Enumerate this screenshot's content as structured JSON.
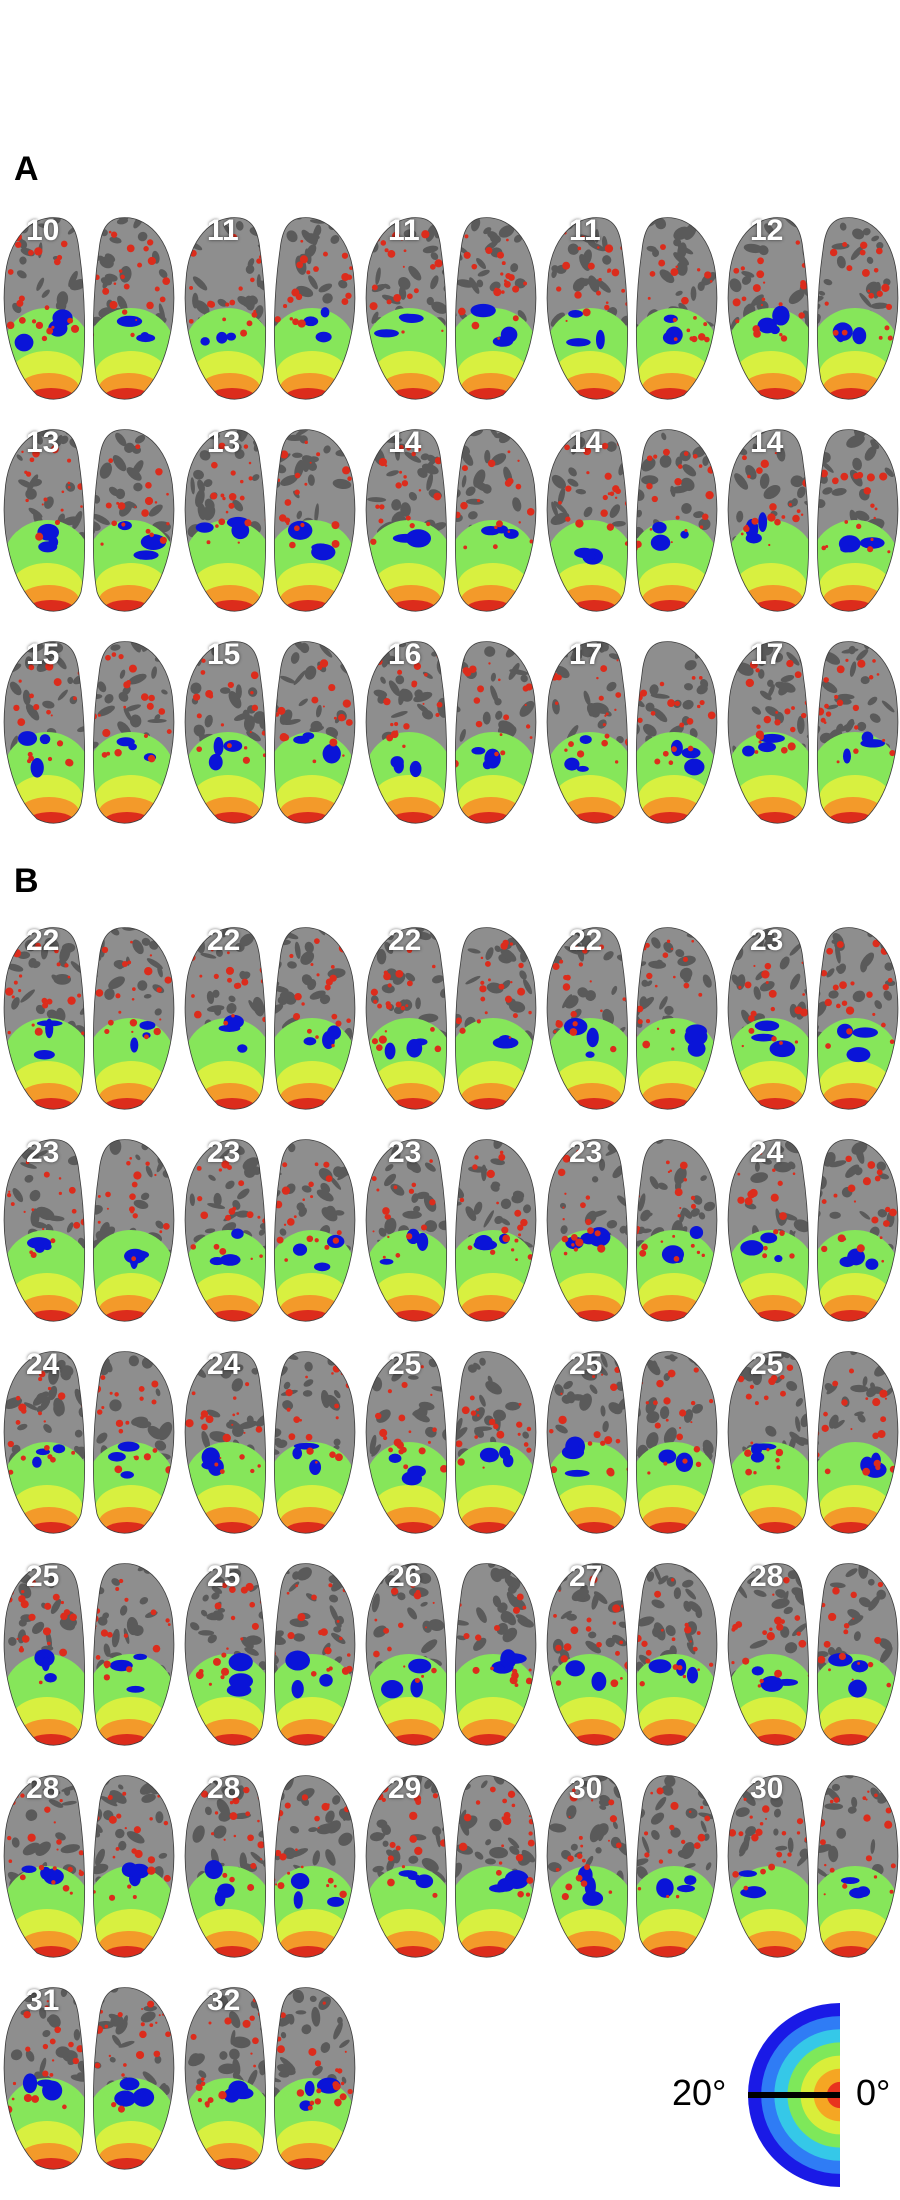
{
  "panels": [
    {
      "label": "A",
      "subjects": [
        "10",
        "11",
        "11",
        "11",
        "12",
        "13",
        "13",
        "14",
        "14",
        "14",
        "15",
        "15",
        "16",
        "17",
        "17"
      ]
    },
    {
      "label": "B",
      "subjects": [
        "22",
        "22",
        "22",
        "22",
        "23",
        "23",
        "23",
        "23",
        "23",
        "24",
        "24",
        "24",
        "25",
        "25",
        "25",
        "25",
        "25",
        "26",
        "27",
        "28",
        "28",
        "28",
        "29",
        "30",
        "30",
        "31",
        "32"
      ]
    }
  ],
  "legend": {
    "eccentricity_max_label": "20°",
    "eccentricity_min_label": "0°",
    "colors": [
      "#1a1ae6",
      "#2f7cf5",
      "#35c8e8",
      "#7ee85a",
      "#d9ee3a",
      "#f5a623",
      "#e8331e"
    ]
  },
  "colors": {
    "cortex_dark": "#5a5a5a",
    "cortex_light": "#8e8e8e",
    "blue": "#0a14d8",
    "green": "#86e65a",
    "yellow": "#d8f040",
    "orange": "#f39a2a",
    "red": "#dc2c1c"
  }
}
